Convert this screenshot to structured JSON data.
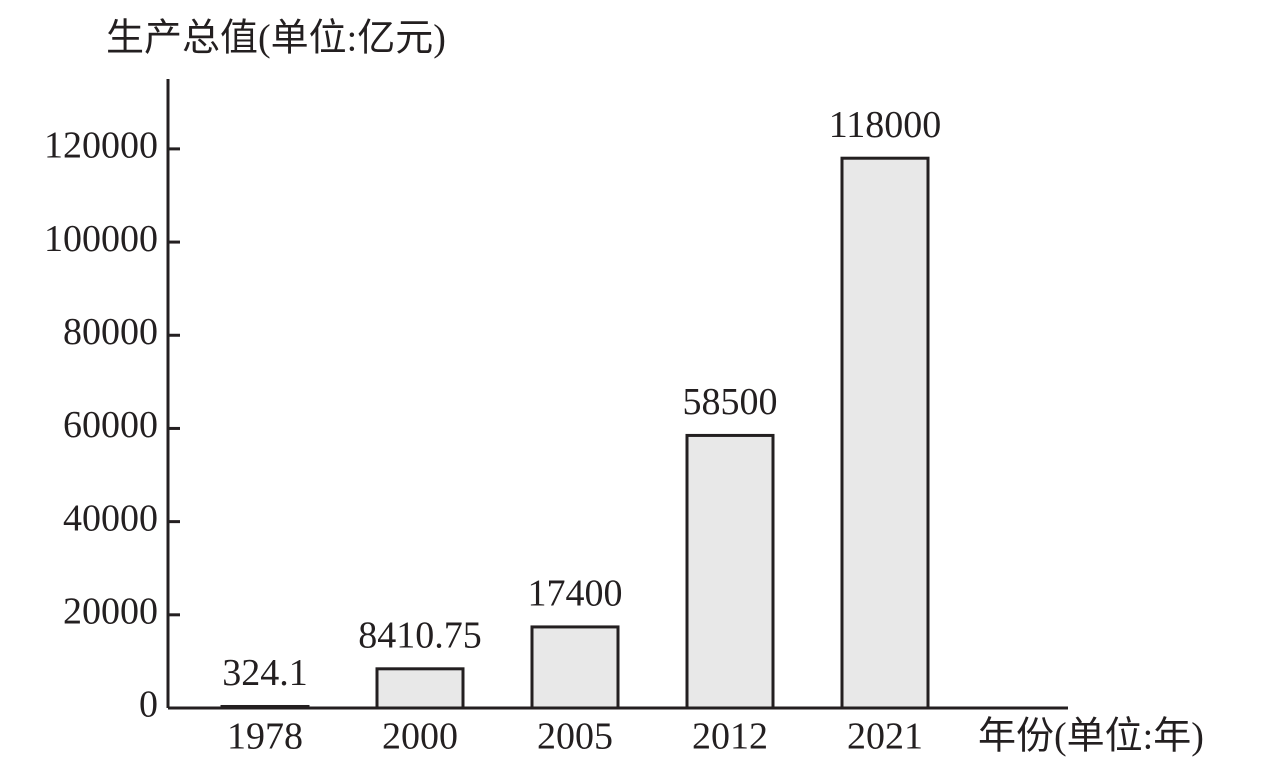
{
  "chart_data": {
    "type": "bar",
    "y_label": "生产总值(单位:亿元)",
    "x_label": "年份(单位:年)",
    "categories": [
      "1978",
      "2000",
      "2005",
      "2012",
      "2021"
    ],
    "values": [
      324.1,
      8410.75,
      17400,
      58500,
      118000
    ],
    "color": "#e8e8e8",
    "ylim": [
      0,
      135000
    ],
    "yticks": [
      0,
      20000,
      40000,
      60000,
      80000,
      100000,
      120000
    ],
    "grid": false
  }
}
